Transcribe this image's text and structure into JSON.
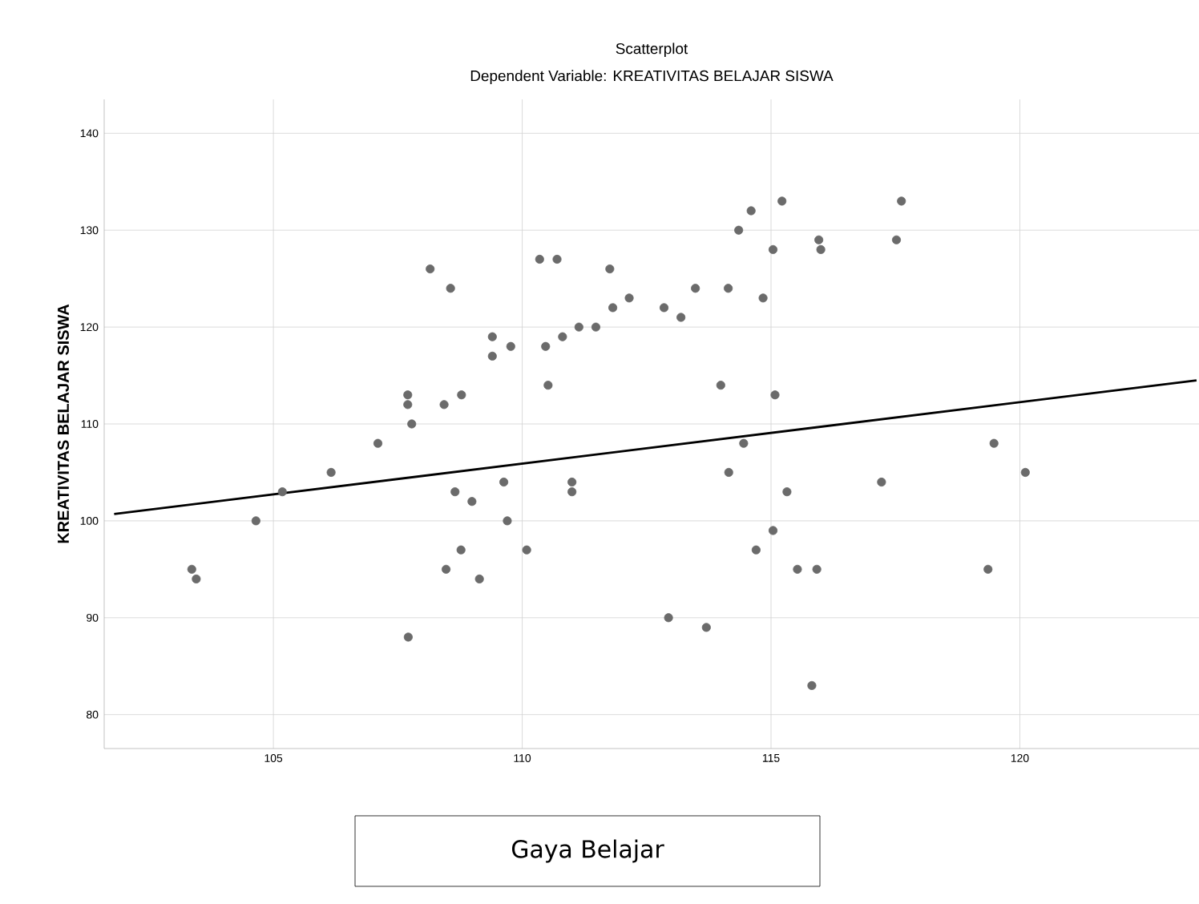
{
  "chart_data": {
    "type": "scatter",
    "title": "Scatterplot",
    "subtitle": "Dependent Variable: KREATIVITAS BELAJAR SISWA",
    "xlabel": "Gaya Belajar",
    "ylabel": "KREATIVITAS BELAJAR SISWA",
    "xlim": [
      101.6,
      123.6
    ],
    "ylim": [
      76.5,
      143.5
    ],
    "xticks": [
      105,
      110,
      115,
      120
    ],
    "yticks": [
      80,
      90,
      100,
      110,
      120,
      130,
      140
    ],
    "grid": true,
    "series": [
      {
        "marker": "circle",
        "color": "#6b6b6b",
        "x": [
          108.15,
          108.56,
          109.4,
          109.4,
          107.7,
          107.7,
          107.78,
          108.43,
          108.78,
          107.1,
          106.16,
          105.18,
          104.65,
          103.36,
          103.45,
          108.65,
          108.99,
          108.77,
          108.47,
          109.14,
          107.71,
          109.77,
          110.35,
          110.7,
          110.47,
          110.81,
          111.14,
          111.48,
          111.76,
          111.82,
          112.15,
          110.52,
          112.85,
          113.19,
          113.48,
          114.14,
          114.35,
          114.6,
          115.22,
          115.04,
          114.84,
          115.96,
          116.0,
          113.99,
          115.08,
          114.45,
          114.15,
          115.32,
          115.04,
          114.7,
          115.53,
          115.92,
          112.94,
          113.7,
          115.82,
          109.63,
          109.7,
          110.09,
          111.0,
          111.0,
          117.62,
          117.52,
          119.48,
          120.11,
          117.22,
          119.36
        ],
        "values": [
          126,
          124,
          119,
          117,
          113,
          112,
          110,
          112,
          113,
          108,
          105,
          103,
          100,
          95,
          94,
          103,
          102,
          97,
          95,
          94,
          88,
          118,
          127,
          127,
          118,
          119,
          120,
          120,
          126,
          122,
          123,
          114,
          122,
          121,
          124,
          124,
          130,
          132,
          133,
          128,
          123,
          129,
          128,
          114,
          113,
          108,
          105,
          103,
          99,
          97,
          95,
          95,
          90,
          89,
          83,
          104,
          100,
          97,
          104,
          103,
          133,
          129,
          108,
          105,
          104,
          95
        ]
      },
      {
        "type": "line",
        "marker": "none",
        "color": "#000000",
        "x": [
          101.8,
          123.55
        ],
        "values": [
          100.7,
          114.5
        ]
      }
    ]
  }
}
